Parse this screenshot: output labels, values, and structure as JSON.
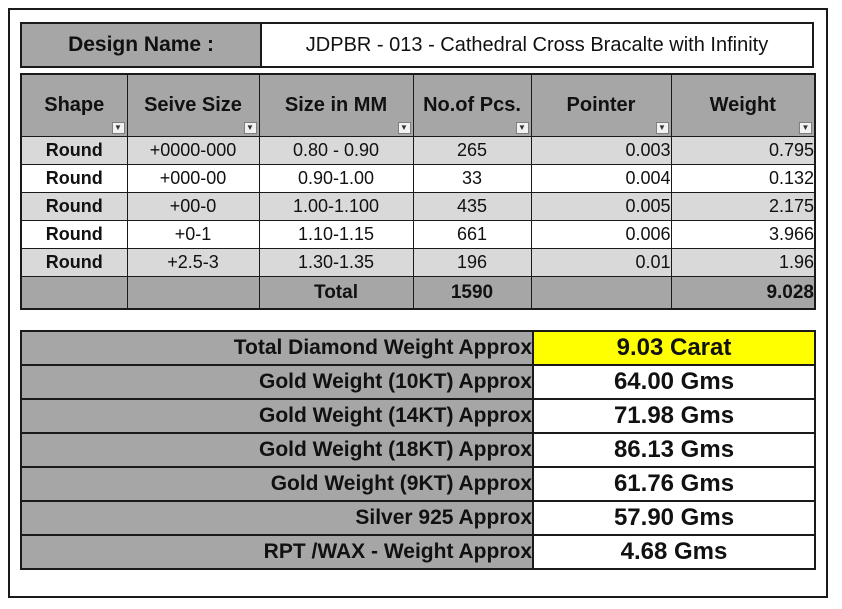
{
  "design": {
    "label": "Design Name :",
    "value": "JDPBR - 013 - Cathedral Cross Bracalte with Infinity"
  },
  "table": {
    "columns": [
      "Shape",
      "Seive Size",
      "Size in MM",
      "No.of Pcs.",
      "Pointer",
      "Weight"
    ],
    "rows": [
      {
        "shape": "Round",
        "seive": "+0000-000",
        "mm": "0.80 - 0.90",
        "pcs": "265",
        "pointer": "0.003",
        "weight": "0.795"
      },
      {
        "shape": "Round",
        "seive": "+000-00",
        "mm": "0.90-1.00",
        "pcs": "33",
        "pointer": "0.004",
        "weight": "0.132"
      },
      {
        "shape": "Round",
        "seive": "+00-0",
        "mm": "1.00-1.100",
        "pcs": "435",
        "pointer": "0.005",
        "weight": "2.175"
      },
      {
        "shape": "Round",
        "seive": "+0-1",
        "mm": "1.10-1.15",
        "pcs": "661",
        "pointer": "0.006",
        "weight": "3.966"
      },
      {
        "shape": "Round",
        "seive": "+2.5-3",
        "mm": "1.30-1.35",
        "pcs": "196",
        "pointer": "0.01",
        "weight": "1.96"
      }
    ],
    "total": {
      "label": "Total",
      "pcs": "1590",
      "weight": "9.028"
    }
  },
  "summary": [
    {
      "label": "Total Diamond Weight Approx",
      "value": "9.03 Carat"
    },
    {
      "label": "Gold Weight (10KT) Approx",
      "value": "64.00 Gms"
    },
    {
      "label": "Gold Weight (14KT) Approx",
      "value": "71.98 Gms"
    },
    {
      "label": "Gold Weight (18KT) Approx",
      "value": "86.13 Gms"
    },
    {
      "label": "Gold Weight (9KT) Approx",
      "value": "61.76 Gms"
    },
    {
      "label": "Silver 925 Approx",
      "value": "57.90 Gms"
    },
    {
      "label": "RPT /WAX - Weight Approx",
      "value": "4.68 Gms"
    }
  ],
  "colors": {
    "header_fill": "#a6a6a6",
    "band_fill": "#d9d9d9",
    "highlight": "#ffff00"
  },
  "icons": {
    "filter": "filter-dropdown-icon",
    "filter_active": "filter-applied-icon"
  }
}
